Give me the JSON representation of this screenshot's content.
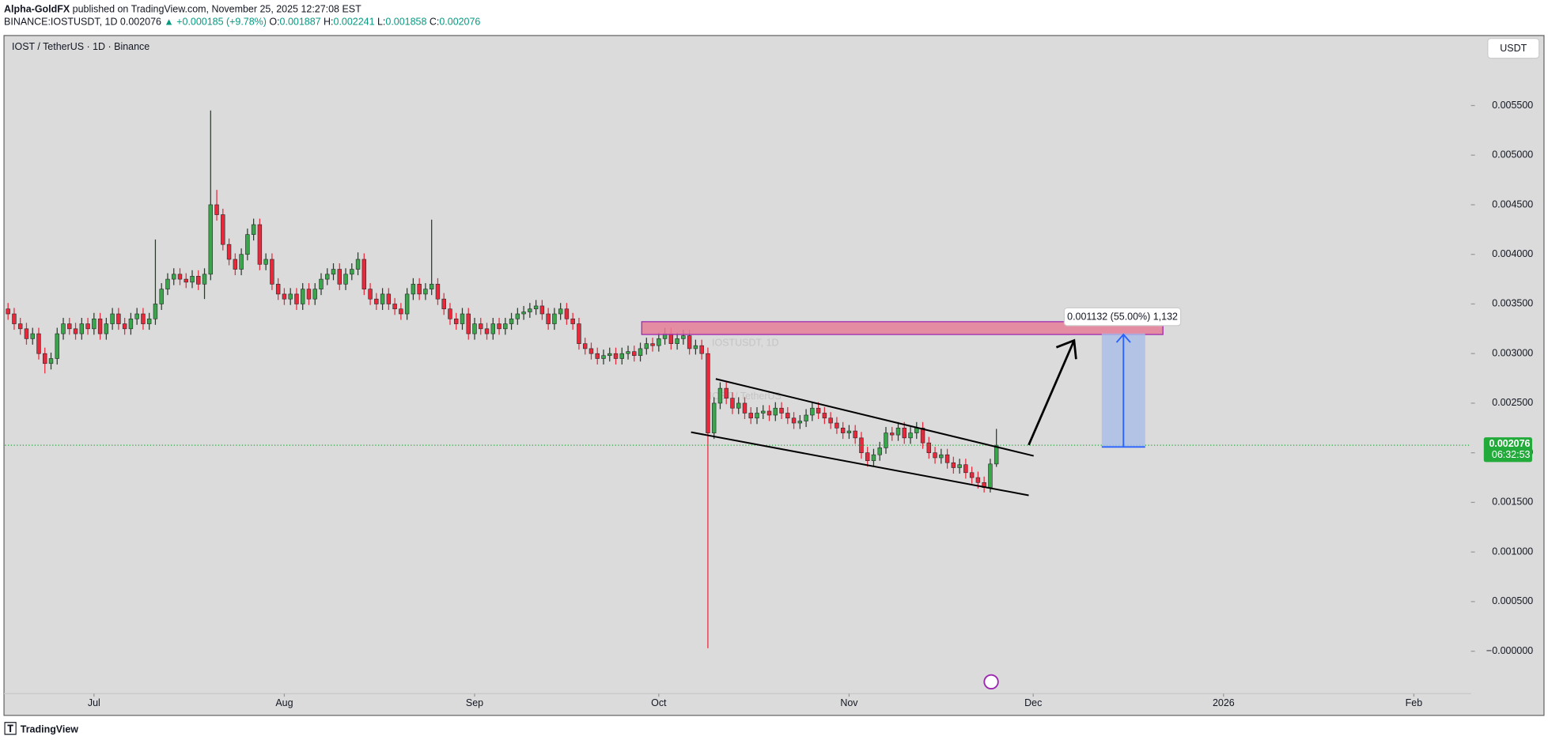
{
  "header": {
    "author": "Alpha-GoldFX",
    "published": "published on TradingView.com, November 25, 2025 12:27:08 EST",
    "symbol": "BINANCE:IOSTUSDT, 1D",
    "price": "0.002076",
    "change": "▲ +0.000185 (+9.78%)",
    "ohlc": [
      {
        "label": "O:",
        "value": "0.001887"
      },
      {
        "label": "H:",
        "value": "0.002241"
      },
      {
        "label": "L:",
        "value": "0.001858"
      },
      {
        "label": "C:",
        "value": "0.002076"
      }
    ]
  },
  "chart_data": {
    "type": "candlestick",
    "title": "IOST / TetherUS · 1D · Binance",
    "watermark": "IOSTUSDT, 1D",
    "watermark_sub": "IOST / TetherUS",
    "currency": "USDT",
    "up_color": "#3aa64c",
    "down_color": "#e8283b",
    "open": [
      0.00345,
      0.0034,
      0.0033,
      0.00325,
      0.00315,
      0.0032,
      0.003,
      0.0029,
      0.00295,
      0.0032,
      0.0033,
      0.00325,
      0.0032,
      0.0033,
      0.00325,
      0.00335,
      0.0032,
      0.0033,
      0.0034,
      0.0033,
      0.00325,
      0.00335,
      0.0034,
      0.0033,
      0.00335,
      0.0035,
      0.00365,
      0.00375,
      0.0038,
      0.00375,
      0.00372,
      0.00378,
      0.0037,
      0.0038,
      0.0045,
      0.0044,
      0.0041,
      0.00395,
      0.00385,
      0.004,
      0.0042,
      0.0043,
      0.0039,
      0.00395,
      0.0037,
      0.0036,
      0.00355,
      0.0036,
      0.0035,
      0.00365,
      0.00355,
      0.00365,
      0.00375,
      0.0038,
      0.00385,
      0.0037,
      0.0038,
      0.00385,
      0.00395,
      0.00365,
      0.00355,
      0.0035,
      0.0036,
      0.0035,
      0.00345,
      0.0034,
      0.0036,
      0.0037,
      0.0036,
      0.00365,
      0.0037,
      0.00355,
      0.00345,
      0.00335,
      0.0033,
      0.0034,
      0.0032,
      0.0033,
      0.00325,
      0.0032,
      0.0033,
      0.00325,
      0.0033,
      0.00335,
      0.0034,
      0.00342,
      0.00345,
      0.00348,
      0.0034,
      0.0033,
      0.0034,
      0.00345,
      0.00335,
      0.0033,
      0.0031,
      0.00305,
      0.003,
      0.00295,
      0.00298,
      0.003,
      0.00295,
      0.003,
      0.00302,
      0.00298,
      0.00305,
      0.0031,
      0.00308,
      0.00315,
      0.0032,
      0.0031,
      0.00315,
      0.00318,
      0.00305,
      0.00308,
      0.003,
      0.0022,
      0.0025,
      0.00265,
      0.00255,
      0.00245,
      0.0025,
      0.0024,
      0.00235,
      0.0024,
      0.00242,
      0.00238,
      0.00245,
      0.0024,
      0.00235,
      0.0023,
      0.00232,
      0.00238,
      0.00245,
      0.0024,
      0.00235,
      0.0023,
      0.00225,
      0.0022,
      0.00222,
      0.00215,
      0.002,
      0.00192,
      0.00198,
      0.00205,
      0.0022,
      0.00218,
      0.00225,
      0.00215,
      0.0022,
      0.00225,
      0.0021,
      0.002,
      0.00195,
      0.00198,
      0.0019,
      0.00185,
      0.00188,
      0.0018,
      0.00175,
      0.0017,
      0.00165,
      0.001887
    ],
    "high": [
      0.00351,
      0.00346,
      0.00336,
      0.00331,
      0.00326,
      0.00326,
      0.00306,
      0.00301,
      0.00326,
      0.00336,
      0.00336,
      0.00331,
      0.00336,
      0.00336,
      0.00341,
      0.00341,
      0.00336,
      0.00346,
      0.00346,
      0.00336,
      0.00341,
      0.00346,
      0.00346,
      0.00341,
      0.00415,
      0.00371,
      0.00381,
      0.00386,
      0.00386,
      0.00381,
      0.00384,
      0.00384,
      0.00386,
      0.00545,
      0.00465,
      0.00446,
      0.00416,
      0.00401,
      0.00406,
      0.00426,
      0.00436,
      0.00436,
      0.00401,
      0.00401,
      0.00376,
      0.00366,
      0.00366,
      0.00366,
      0.00371,
      0.00371,
      0.00371,
      0.00381,
      0.00386,
      0.00391,
      0.00391,
      0.00386,
      0.00391,
      0.00402,
      0.00401,
      0.00371,
      0.00361,
      0.00366,
      0.00366,
      0.00356,
      0.00351,
      0.00366,
      0.00376,
      0.00376,
      0.00371,
      0.00435,
      0.00376,
      0.00361,
      0.00351,
      0.00341,
      0.00346,
      0.00346,
      0.00336,
      0.00336,
      0.00331,
      0.00336,
      0.00336,
      0.00336,
      0.00341,
      0.00346,
      0.00348,
      0.00351,
      0.00354,
      0.00354,
      0.00346,
      0.00346,
      0.00351,
      0.00351,
      0.00341,
      0.00336,
      0.00316,
      0.00311,
      0.00306,
      0.00304,
      0.00306,
      0.00306,
      0.00306,
      0.00308,
      0.00308,
      0.00311,
      0.00316,
      0.00316,
      0.00321,
      0.00326,
      0.00326,
      0.00321,
      0.00324,
      0.00324,
      0.00314,
      0.00314,
      0.00306,
      0.00256,
      0.00271,
      0.00271,
      0.00261,
      0.00256,
      0.00256,
      0.00246,
      0.00246,
      0.00248,
      0.00248,
      0.00251,
      0.00251,
      0.00246,
      0.00241,
      0.00238,
      0.00244,
      0.00251,
      0.00251,
      0.00246,
      0.00241,
      0.00236,
      0.00231,
      0.00228,
      0.00228,
      0.00221,
      0.00206,
      0.00204,
      0.00211,
      0.00226,
      0.00226,
      0.00231,
      0.00231,
      0.00226,
      0.00231,
      0.00231,
      0.00216,
      0.00206,
      0.00204,
      0.00204,
      0.00196,
      0.00194,
      0.00194,
      0.00186,
      0.00181,
      0.00176,
      0.00194,
      0.002241
    ],
    "low": [
      0.00334,
      0.00324,
      0.00319,
      0.00309,
      0.00309,
      0.00294,
      0.0028,
      0.00284,
      0.00289,
      0.00314,
      0.00319,
      0.00314,
      0.00314,
      0.00319,
      0.00319,
      0.00314,
      0.00314,
      0.00324,
      0.00324,
      0.00319,
      0.00319,
      0.00329,
      0.00324,
      0.00324,
      0.00329,
      0.00344,
      0.00359,
      0.00369,
      0.00369,
      0.00366,
      0.00366,
      0.00364,
      0.00355,
      0.00374,
      0.00434,
      0.00404,
      0.00389,
      0.00379,
      0.00379,
      0.00394,
      0.00414,
      0.00384,
      0.00384,
      0.00364,
      0.00354,
      0.00349,
      0.00349,
      0.00344,
      0.00344,
      0.00349,
      0.00349,
      0.00359,
      0.00369,
      0.00374,
      0.00364,
      0.00364,
      0.00374,
      0.00379,
      0.00359,
      0.00349,
      0.00344,
      0.00344,
      0.00344,
      0.00339,
      0.00334,
      0.00334,
      0.00354,
      0.00354,
      0.00354,
      0.00359,
      0.00349,
      0.00339,
      0.00329,
      0.00324,
      0.00324,
      0.00314,
      0.00314,
      0.00319,
      0.00314,
      0.00314,
      0.00319,
      0.00319,
      0.00324,
      0.00329,
      0.00334,
      0.00336,
      0.00339,
      0.00334,
      0.00324,
      0.00324,
      0.00334,
      0.00329,
      0.00324,
      0.00304,
      0.00299,
      0.00294,
      0.00289,
      0.00289,
      0.00292,
      0.00289,
      0.00289,
      0.00294,
      0.00292,
      0.00292,
      0.00299,
      0.00302,
      0.00302,
      0.00309,
      0.00304,
      0.00304,
      0.00309,
      0.00299,
      0.00299,
      0.00294,
      3e-05,
      0.00214,
      0.00244,
      0.00249,
      0.00239,
      0.00239,
      0.00234,
      0.00229,
      0.00229,
      0.00234,
      0.00232,
      0.00232,
      0.00234,
      0.00229,
      0.00224,
      0.00224,
      0.00226,
      0.00232,
      0.00234,
      0.00229,
      0.00224,
      0.00219,
      0.00214,
      0.00214,
      0.00209,
      0.00194,
      0.00186,
      0.00186,
      0.00192,
      0.00199,
      0.00212,
      0.00212,
      0.00209,
      0.00209,
      0.00214,
      0.00204,
      0.00194,
      0.00189,
      0.00189,
      0.00184,
      0.00179,
      0.00179,
      0.00174,
      0.00169,
      0.00164,
      0.0016,
      0.0016,
      0.001858
    ],
    "close": [
      0.0034,
      0.0033,
      0.00325,
      0.00315,
      0.0032,
      0.003,
      0.0029,
      0.00295,
      0.0032,
      0.0033,
      0.00325,
      0.0032,
      0.0033,
      0.00325,
      0.00335,
      0.0032,
      0.0033,
      0.0034,
      0.0033,
      0.00325,
      0.00335,
      0.0034,
      0.0033,
      0.00335,
      0.0035,
      0.00365,
      0.00375,
      0.0038,
      0.00375,
      0.00372,
      0.00378,
      0.0037,
      0.0038,
      0.0045,
      0.0044,
      0.0041,
      0.00395,
      0.00385,
      0.004,
      0.0042,
      0.0043,
      0.0039,
      0.00395,
      0.0037,
      0.0036,
      0.00355,
      0.0036,
      0.0035,
      0.00365,
      0.00355,
      0.00365,
      0.00375,
      0.0038,
      0.00385,
      0.0037,
      0.0038,
      0.00385,
      0.00395,
      0.00365,
      0.00355,
      0.0035,
      0.0036,
      0.0035,
      0.00345,
      0.0034,
      0.0036,
      0.0037,
      0.0036,
      0.00365,
      0.0037,
      0.00355,
      0.00345,
      0.00335,
      0.0033,
      0.0034,
      0.0032,
      0.0033,
      0.00325,
      0.0032,
      0.0033,
      0.00325,
      0.0033,
      0.00335,
      0.0034,
      0.00342,
      0.00345,
      0.00348,
      0.0034,
      0.0033,
      0.0034,
      0.00345,
      0.00335,
      0.0033,
      0.0031,
      0.00305,
      0.003,
      0.00295,
      0.00298,
      0.003,
      0.00295,
      0.003,
      0.00302,
      0.00298,
      0.00305,
      0.0031,
      0.00308,
      0.00315,
      0.0032,
      0.0031,
      0.00315,
      0.00318,
      0.00305,
      0.00308,
      0.003,
      0.0022,
      0.0025,
      0.00265,
      0.00255,
      0.00245,
      0.0025,
      0.0024,
      0.00235,
      0.0024,
      0.00242,
      0.00238,
      0.00245,
      0.0024,
      0.00235,
      0.0023,
      0.00232,
      0.00238,
      0.00245,
      0.0024,
      0.00235,
      0.0023,
      0.00225,
      0.0022,
      0.00222,
      0.00215,
      0.002,
      0.00192,
      0.00198,
      0.00205,
      0.0022,
      0.00218,
      0.00225,
      0.00215,
      0.0022,
      0.00225,
      0.0021,
      0.002,
      0.00195,
      0.00198,
      0.0019,
      0.00185,
      0.00188,
      0.0018,
      0.00175,
      0.0017,
      0.00165,
      0.001887,
      0.002076
    ],
    "xlim": [
      -0.5,
      238.3
    ],
    "xticks": [
      {
        "value": 14,
        "label": "Jul"
      },
      {
        "value": 45,
        "label": "Aug"
      },
      {
        "value": 76,
        "label": "Sep"
      },
      {
        "value": 106,
        "label": "Oct"
      },
      {
        "value": 137,
        "label": "Nov"
      },
      {
        "value": 167,
        "label": "Dec"
      },
      {
        "value": 198,
        "label": "2026"
      },
      {
        "value": 229,
        "label": "Feb"
      }
    ],
    "ylim": [
      -0.000637,
      0.006196
    ],
    "yticks": [
      {
        "value": 0,
        "label": "−0.000000"
      },
      {
        "value": 0.0005,
        "label": "0.000500"
      },
      {
        "value": 0.001,
        "label": "0.001000"
      },
      {
        "value": 0.0015,
        "label": "0.001500"
      },
      {
        "value": 0.002,
        "label": "0.002000"
      },
      {
        "value": 0.0025,
        "label": "0.002500"
      },
      {
        "value": 0.003,
        "label": "0.003000"
      },
      {
        "value": 0.0035,
        "label": "0.003500"
      },
      {
        "value": 0.004,
        "label": "0.004000"
      },
      {
        "value": 0.0045,
        "label": "0.004500"
      },
      {
        "value": 0.005,
        "label": "0.005000"
      },
      {
        "value": 0.0055,
        "label": "0.005500"
      }
    ],
    "last_price": {
      "value": 0.002076,
      "label": "0.002076"
    },
    "countdown": "06:32:53",
    "measure_label": "0.001132 (55.00%) 1,132"
  },
  "footer": {
    "brand": "TradingView"
  }
}
